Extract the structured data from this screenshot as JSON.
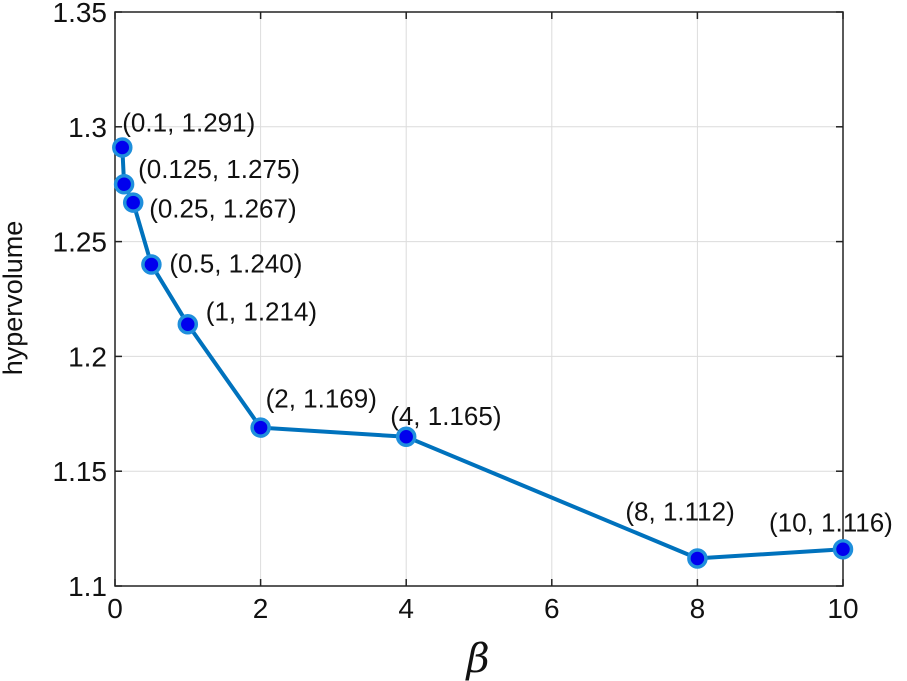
{
  "chart_data": {
    "type": "line",
    "title": "",
    "xlabel": "β",
    "ylabel": "hypervolume",
    "xlim": [
      0,
      10
    ],
    "ylim": [
      1.1,
      1.35
    ],
    "grid": true,
    "x_ticks": [
      "0",
      "2",
      "4",
      "6",
      "8",
      "10"
    ],
    "y_ticks": [
      "1.1",
      "1.15",
      "1.2",
      "1.25",
      "1.3",
      "1.35"
    ],
    "x_tick_values": [
      0,
      2,
      4,
      6,
      8,
      10
    ],
    "y_tick_values": [
      1.1,
      1.15,
      1.2,
      1.25,
      1.3,
      1.35
    ],
    "series": [
      {
        "x": [
          0.1,
          0.125,
          0.25,
          0.5,
          1,
          2,
          4,
          8,
          10
        ],
        "y": [
          1.291,
          1.275,
          1.267,
          1.24,
          1.214,
          1.169,
          1.165,
          1.112,
          1.116
        ],
        "line_color": "#0072bd",
        "marker_fill": "#0000ee",
        "marker_edge": "#1f8fdc"
      }
    ],
    "annotations": [
      "(0.1, 1.291)",
      "(0.125, 1.275)",
      "(0.25, 1.267)",
      "(0.5, 1.240)",
      "(1, 1.214)",
      "(2, 1.169)",
      "(4, 1.165)",
      "(8, 1.112)",
      "(10, 1.116)"
    ]
  }
}
